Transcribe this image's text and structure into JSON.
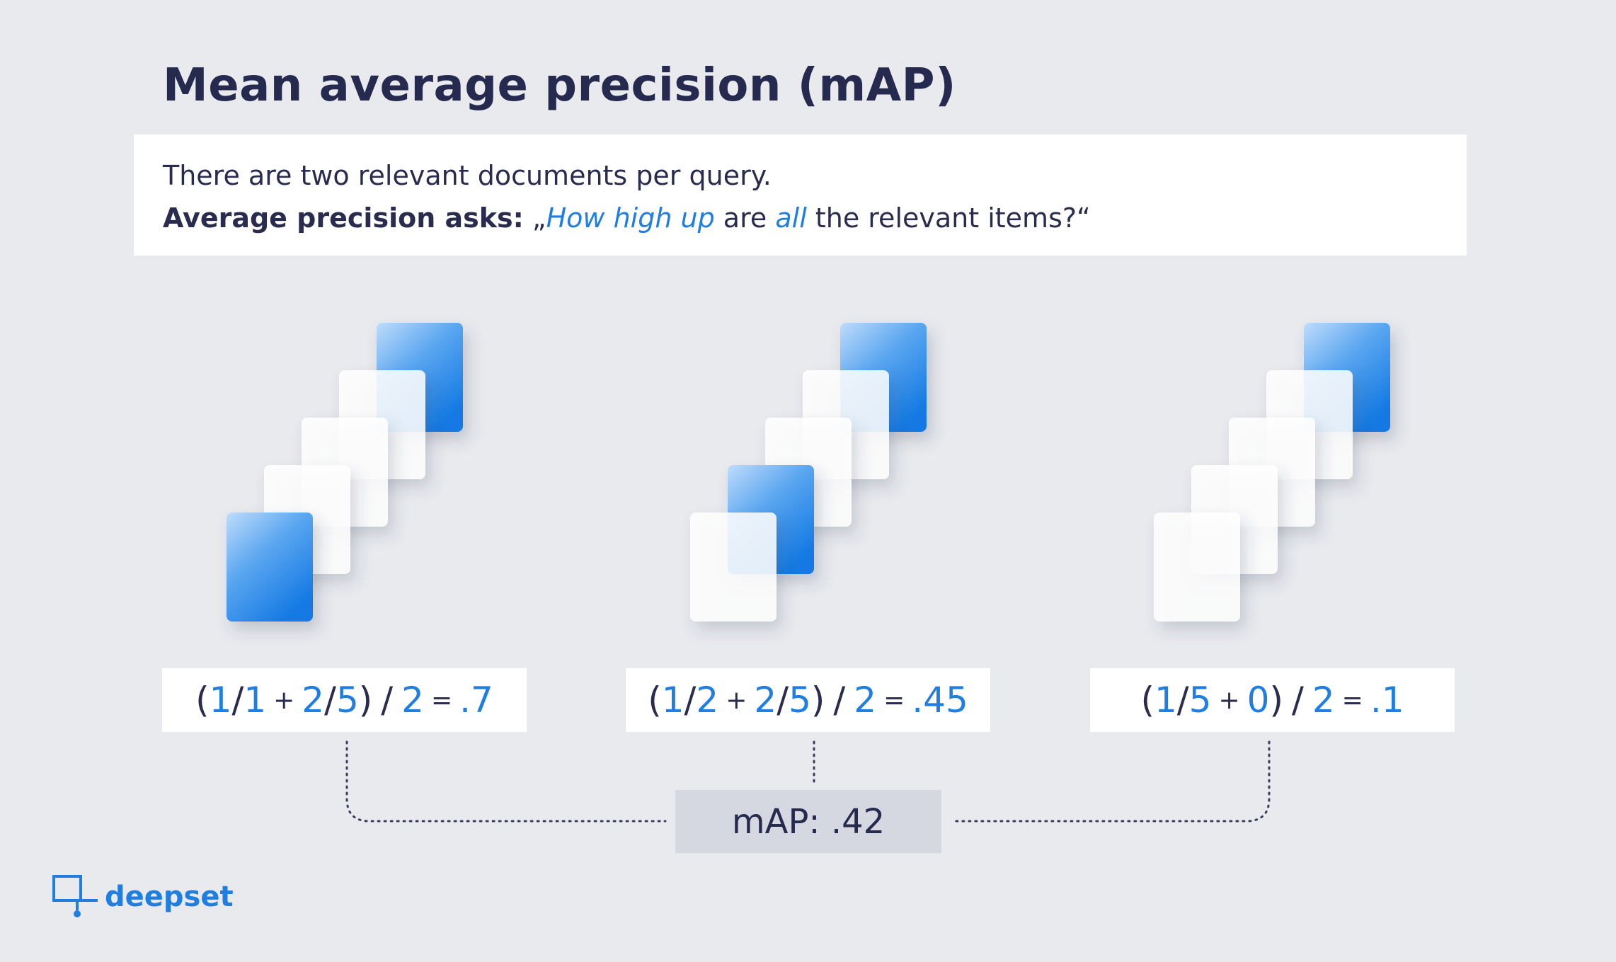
{
  "title": "Mean average precision (mAP)",
  "intro": {
    "line1": "There are two relevant documents per query.",
    "line2_bold": "Average precision asks:",
    "line2_open": " „",
    "line2_accent1": "How high up",
    "line2_mid": " are ",
    "line2_accent2": "all",
    "line2_end": " the relevant items?“"
  },
  "queries": [
    {
      "relevant_ranks": [
        1,
        5
      ],
      "formula": {
        "open": "(",
        "n1": "1",
        "s1": "/",
        "d1": "1",
        "plus": "+",
        "n2": "2",
        "s2": "/",
        "d2": "5",
        "close": ")",
        "div": "/",
        "k": "2",
        "eq": "=",
        "result": ".7"
      }
    },
    {
      "relevant_ranks": [
        2,
        5
      ],
      "formula": {
        "open": "(",
        "n1": "1",
        "s1": "/",
        "d1": "2",
        "plus": "+",
        "n2": "2",
        "s2": "/",
        "d2": "5",
        "close": ")",
        "div": "/",
        "k": "2",
        "eq": "=",
        "result": ".45"
      }
    },
    {
      "relevant_ranks": [
        5
      ],
      "formula": {
        "open": "(",
        "n1": "1",
        "s1": "/",
        "d1": "5",
        "plus": "+",
        "n2": "0",
        "s2": "",
        "d2": "",
        "close": ")",
        "div": "/",
        "k": "2",
        "eq": "=",
        "result": ".1"
      }
    }
  ],
  "map_label": "mAP: .42",
  "logo_text": "deepset",
  "colors": {
    "background": "#e9eaee",
    "text": "#262a4f",
    "accent": "#1f7ee0",
    "relevant_doc": "#1f7ee0",
    "irrelevant_doc": "#ffffff",
    "map_box": "#d5d7e1"
  }
}
